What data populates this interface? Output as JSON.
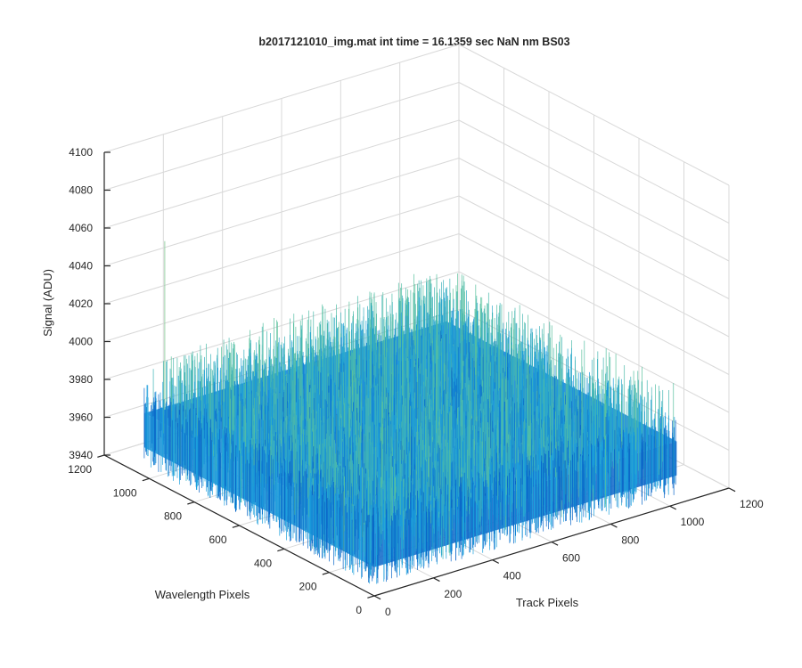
{
  "chart_data": {
    "type": "surface",
    "title": "b2017121010_img.mat int time = 16.1359 sec  NaN nm BS03",
    "xlabel": "Track Pixels",
    "ylabel": "Wavelength Pixels",
    "zlabel": "Signal (ADU)",
    "xlim": [
      0,
      1200
    ],
    "ylim": [
      0,
      1200
    ],
    "zlim": [
      3940,
      4100
    ],
    "xticks": [
      "0",
      "200",
      "400",
      "600",
      "800",
      "1000",
      "1200"
    ],
    "yticks": [
      "0",
      "200",
      "400",
      "600",
      "800",
      "1000",
      "1200"
    ],
    "zticks": [
      "3940",
      "3960",
      "3980",
      "4000",
      "4020",
      "4040",
      "4060",
      "4080",
      "4100"
    ],
    "data_extent": {
      "x": [
        1,
        1024
      ],
      "y": [
        1,
        1024
      ]
    },
    "signal_mean": 3973,
    "signal_noise_range": [
      3945,
      4005
    ],
    "max_spike": 4062,
    "grid": true,
    "view": "3d-default",
    "colormap": "parula",
    "colors": {
      "low": "#0a66c8",
      "mid": "#1ca0dd",
      "high": "#5cc39a",
      "axis": "#262626",
      "grid": "#d9d9d9"
    }
  }
}
